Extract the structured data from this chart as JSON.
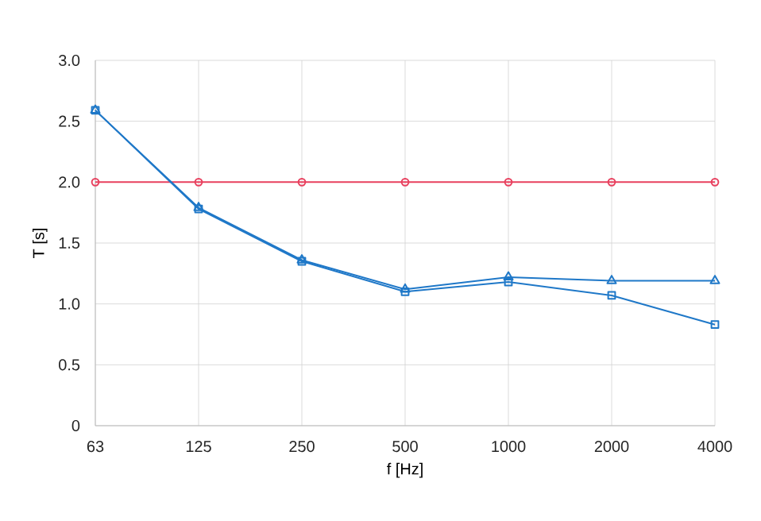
{
  "chart_data": {
    "type": "line",
    "xlabel": "f [Hz]",
    "ylabel": "T [s]",
    "categories": [
      "63",
      "125",
      "250",
      "500",
      "1000",
      "2000",
      "4000"
    ],
    "series": [
      {
        "color": "#e8405e",
        "marker": "circle",
        "values": [
          2.0,
          2.0,
          2.0,
          2.0,
          2.0,
          2.0,
          2.0
        ]
      },
      {
        "color": "#1f78c8",
        "marker": "triangle",
        "values": [
          2.59,
          1.79,
          1.36,
          1.12,
          1.22,
          1.19,
          1.19
        ]
      },
      {
        "color": "#1f78c8",
        "marker": "square",
        "values": [
          2.59,
          1.78,
          1.35,
          1.1,
          1.18,
          1.07,
          0.83
        ]
      }
    ],
    "ylim": [
      0,
      3.0
    ],
    "yticks": [
      {
        "value": 0,
        "label": "0"
      },
      {
        "value": 0.5,
        "label": "0.5"
      },
      {
        "value": 1.0,
        "label": "1.0"
      },
      {
        "value": 1.5,
        "label": "1.5"
      },
      {
        "value": 2.0,
        "label": "2.0"
      },
      {
        "value": 2.5,
        "label": "2.5"
      },
      {
        "value": 3.0,
        "label": "3.0"
      }
    ],
    "grid": true
  }
}
